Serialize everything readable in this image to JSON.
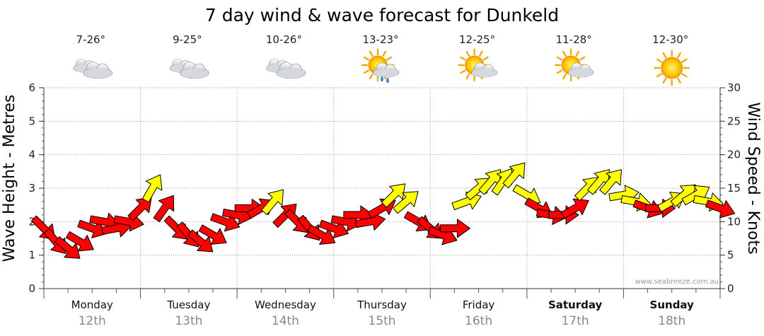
{
  "chart_data": {
    "type": "line",
    "title": "7 day wind & wave forecast for Dunkeld",
    "ylabel_left": "Wave Height - Metres",
    "ylabel_right": "Wind Speed - Knots",
    "yticks_left": [
      "0",
      "1",
      "2",
      "3",
      "4",
      "5",
      "6"
    ],
    "yticks_right": [
      "0",
      "5",
      "10",
      "15",
      "20",
      "25",
      "30"
    ],
    "ylim_left": [
      0,
      6
    ],
    "ylim_right": [
      0,
      30
    ],
    "grid": true,
    "credit": "www.seabreeze.com.au",
    "days": [
      {
        "name": "Monday",
        "date": "12th",
        "temp": "7-26°",
        "icon": "cloudy-icon",
        "bold": false
      },
      {
        "name": "Tuesday",
        "date": "13th",
        "temp": "9-25°",
        "icon": "cloudy-icon",
        "bold": false
      },
      {
        "name": "Wednesday",
        "date": "14th",
        "temp": "10-26°",
        "icon": "cloudy-icon",
        "bold": false
      },
      {
        "name": "Thursday",
        "date": "15th",
        "temp": "13-23°",
        "icon": "sun-cloud-showers-icon",
        "bold": false
      },
      {
        "name": "Friday",
        "date": "16th",
        "temp": "12-25°",
        "icon": "sun-cloud-icon",
        "bold": false
      },
      {
        "name": "Saturday",
        "date": "17th",
        "temp": "11-28°",
        "icon": "sun-cloud-icon",
        "bold": true
      },
      {
        "name": "Sunday",
        "date": "18th",
        "temp": "12-30°",
        "icon": "sun-icon",
        "bold": true
      }
    ],
    "colors": {
      "strong_wind": "#ff0000",
      "light_wind": "#ffff00",
      "arrow_stroke": "#000000"
    },
    "series": [
      {
        "name": "",
        "unit": "knots",
        "x_hours": [
          0,
          3,
          6,
          9,
          12,
          15,
          18,
          21,
          24,
          27,
          30,
          33,
          36,
          39,
          42,
          45,
          48,
          51,
          54,
          57,
          60,
          63,
          66,
          69,
          72,
          75,
          78,
          81,
          84,
          87,
          90,
          93,
          96,
          99,
          102,
          105,
          108,
          111,
          114,
          117,
          120,
          123,
          126,
          129,
          132,
          135,
          138,
          141,
          144,
          147,
          150,
          153,
          156,
          159,
          162,
          165,
          168
        ],
        "wind_speed": [
          9,
          7,
          6,
          7,
          9,
          10,
          9,
          10,
          12,
          15,
          12,
          9,
          8,
          7,
          8,
          10,
          11,
          12,
          12,
          13,
          11,
          10,
          9,
          8,
          9,
          10,
          11,
          10,
          12,
          14,
          13,
          10,
          9,
          8,
          9,
          13,
          15,
          16,
          16,
          17,
          14,
          12,
          11,
          11,
          12,
          15,
          16,
          16,
          14,
          13,
          12,
          12,
          13,
          14,
          14,
          13,
          12
        ],
        "wind_dir_deg": [
          135,
          140,
          130,
          120,
          110,
          100,
          80,
          100,
          45,
          30,
          35,
          135,
          140,
          130,
          120,
          110,
          100,
          90,
          60,
          40,
          45,
          135,
          140,
          120,
          110,
          100,
          90,
          80,
          60,
          45,
          50,
          120,
          130,
          110,
          90,
          70,
          50,
          40,
          35,
          40,
          120,
          120,
          100,
          90,
          60,
          45,
          40,
          40,
          80,
          100,
          110,
          90,
          60,
          50,
          60,
          100,
          110
        ]
      }
    ]
  }
}
